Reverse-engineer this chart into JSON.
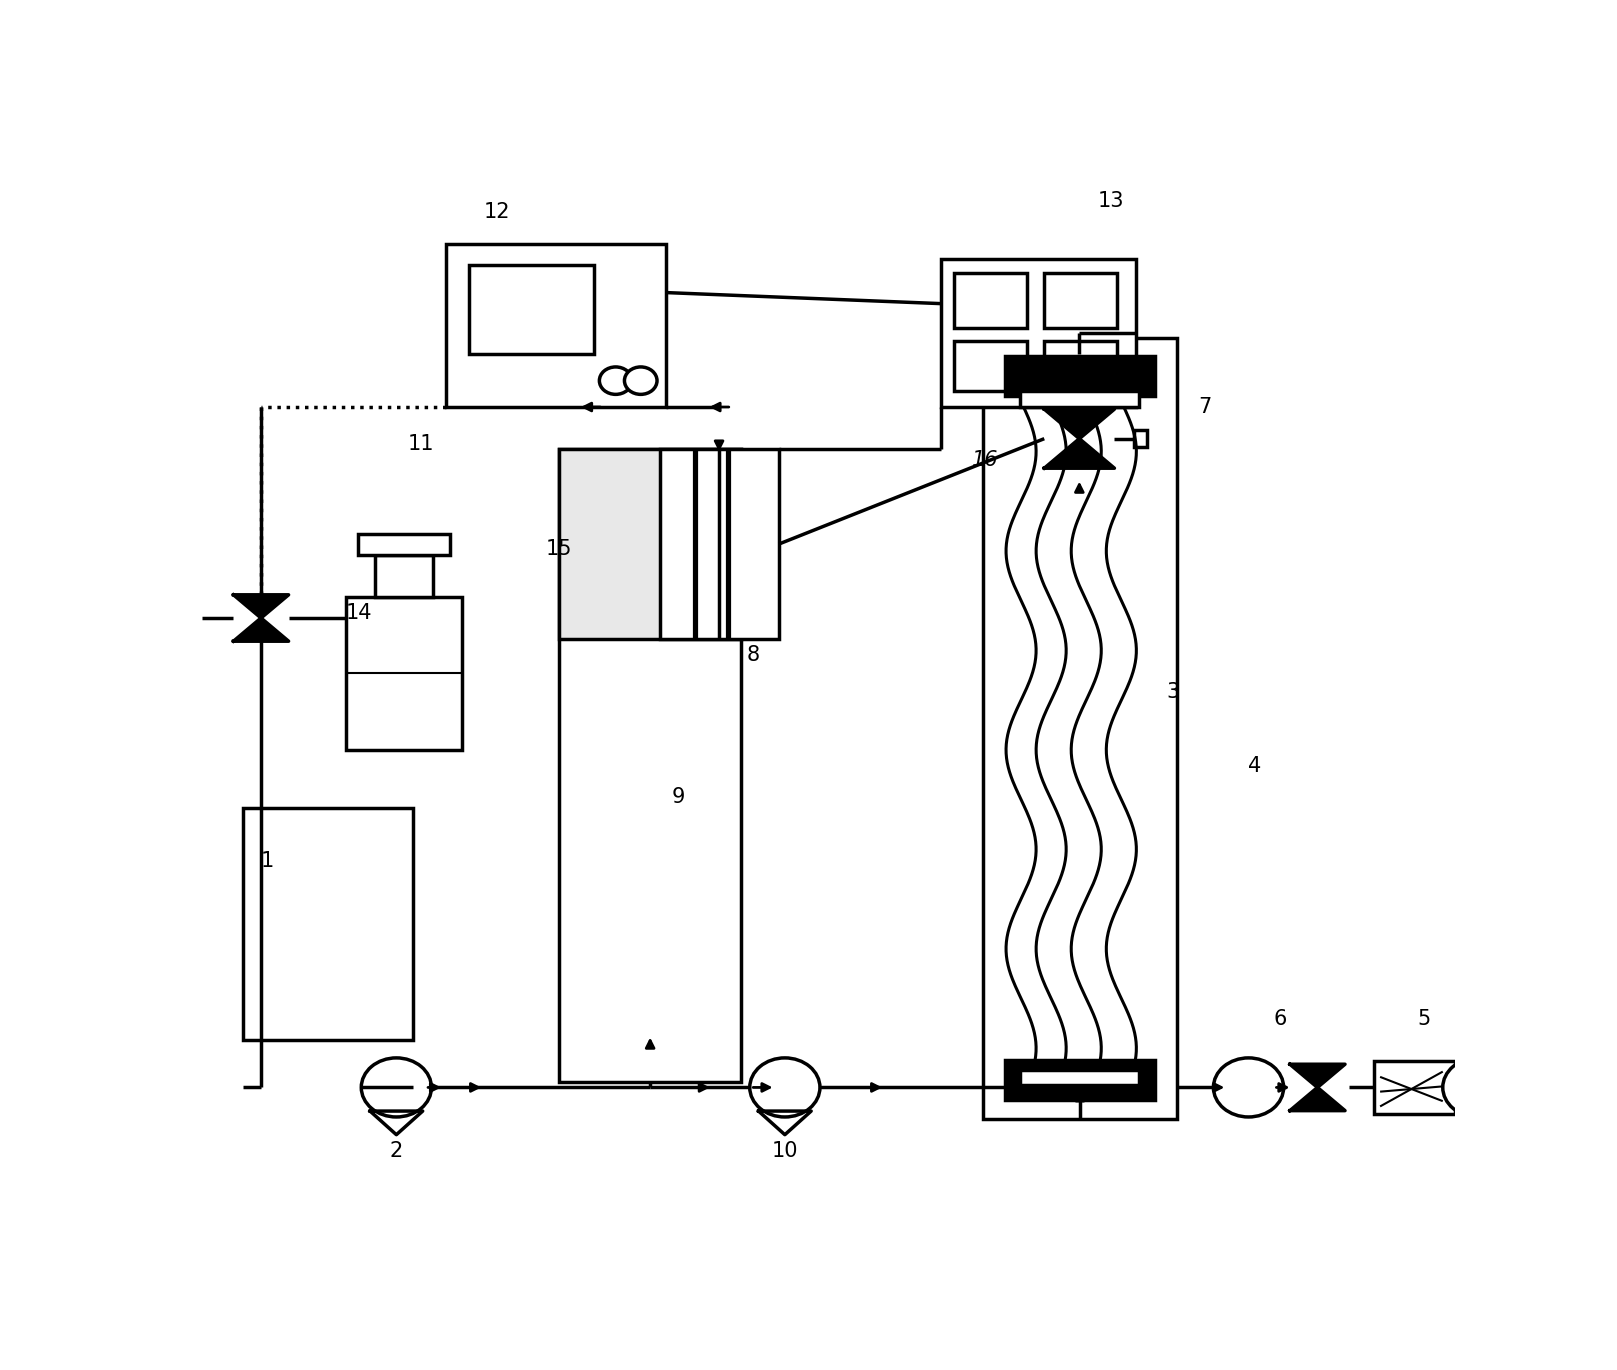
{
  "bg": "#ffffff",
  "lw": 2.5,
  "fig_w": 16.17,
  "fig_h": 13.7,
  "dpi": 100
}
